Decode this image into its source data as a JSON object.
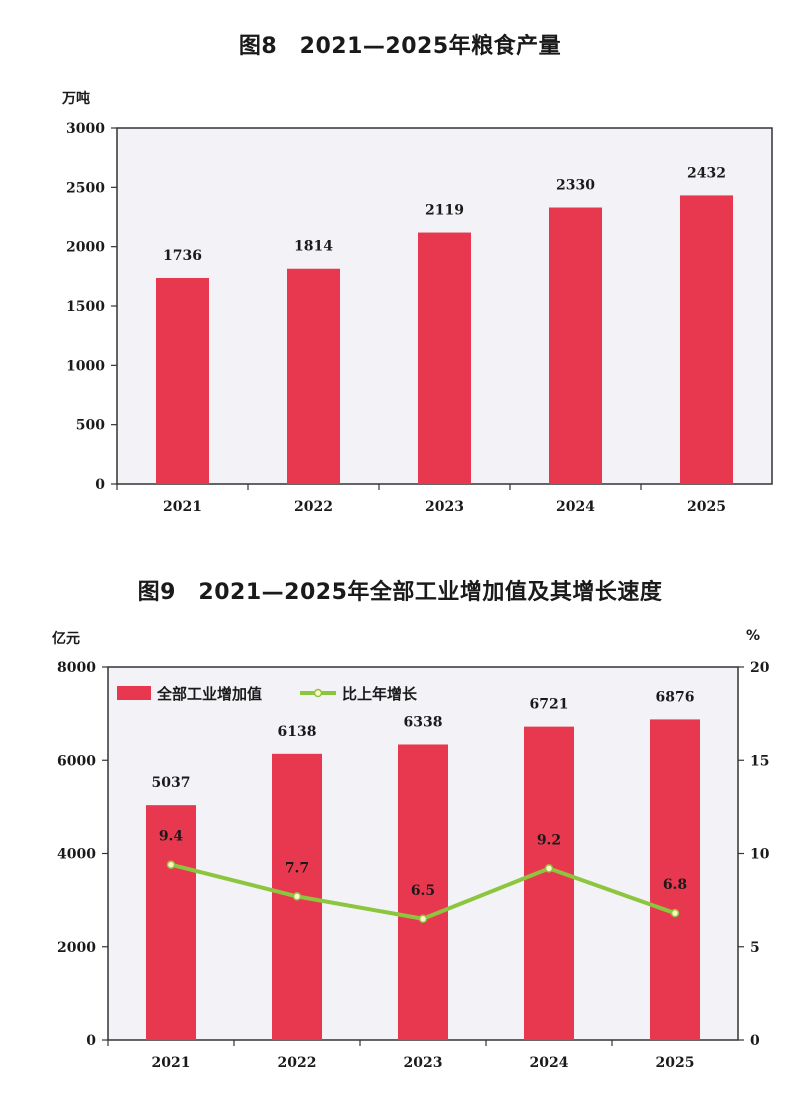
{
  "chart_data": [
    {
      "type": "bar",
      "title": "图8　2021—2025年粮食产量",
      "ylabel": "万吨",
      "xlabel": "",
      "categories": [
        "2021",
        "2022",
        "2023",
        "2024",
        "2025"
      ],
      "values": [
        1736,
        1814,
        2119,
        2330,
        2432
      ],
      "value_labels": [
        "1736",
        "1814",
        "2119",
        "2330",
        "2432"
      ],
      "ylim": [
        0,
        3000
      ],
      "yticks": [
        "0",
        "500",
        "1000",
        "1500",
        "2000",
        "2500",
        "3000"
      ],
      "grid": false,
      "colors": {
        "bar": "#e8384f",
        "plot_bg": "#f3f2f6",
        "frame": "#333333"
      }
    },
    {
      "type": "bar+line",
      "title": "图9　2021—2025年全部工业增加值及其增长速度",
      "ylabel": "亿元",
      "y2label": "%",
      "xlabel": "",
      "categories": [
        "2021",
        "2022",
        "2023",
        "2024",
        "2025"
      ],
      "series": [
        {
          "name": "全部工业增加值",
          "type": "bar",
          "axis": "left",
          "values": [
            5037,
            6138,
            6338,
            6721,
            6876
          ],
          "labels": [
            "5037",
            "6138",
            "6338",
            "6721",
            "6876"
          ]
        },
        {
          "name": "比上年增长",
          "type": "line",
          "axis": "right",
          "values": [
            9.4,
            7.7,
            6.5,
            9.2,
            6.8
          ],
          "labels": [
            "9.4",
            "7.7",
            "6.5",
            "9.2",
            "6.8"
          ]
        }
      ],
      "ylim": [
        0,
        8000
      ],
      "y2lim": [
        0,
        20
      ],
      "yticks": [
        "0",
        "2000",
        "4000",
        "6000",
        "8000"
      ],
      "y2ticks": [
        "0",
        "5",
        "10",
        "15",
        "20"
      ],
      "legend": "top-left",
      "grid": false,
      "colors": {
        "bar": "#e8384f",
        "line": "#8cc63e",
        "marker_fill": "#fff6c8",
        "plot_bg": "#f3f2f6",
        "frame": "#333333"
      }
    }
  ]
}
